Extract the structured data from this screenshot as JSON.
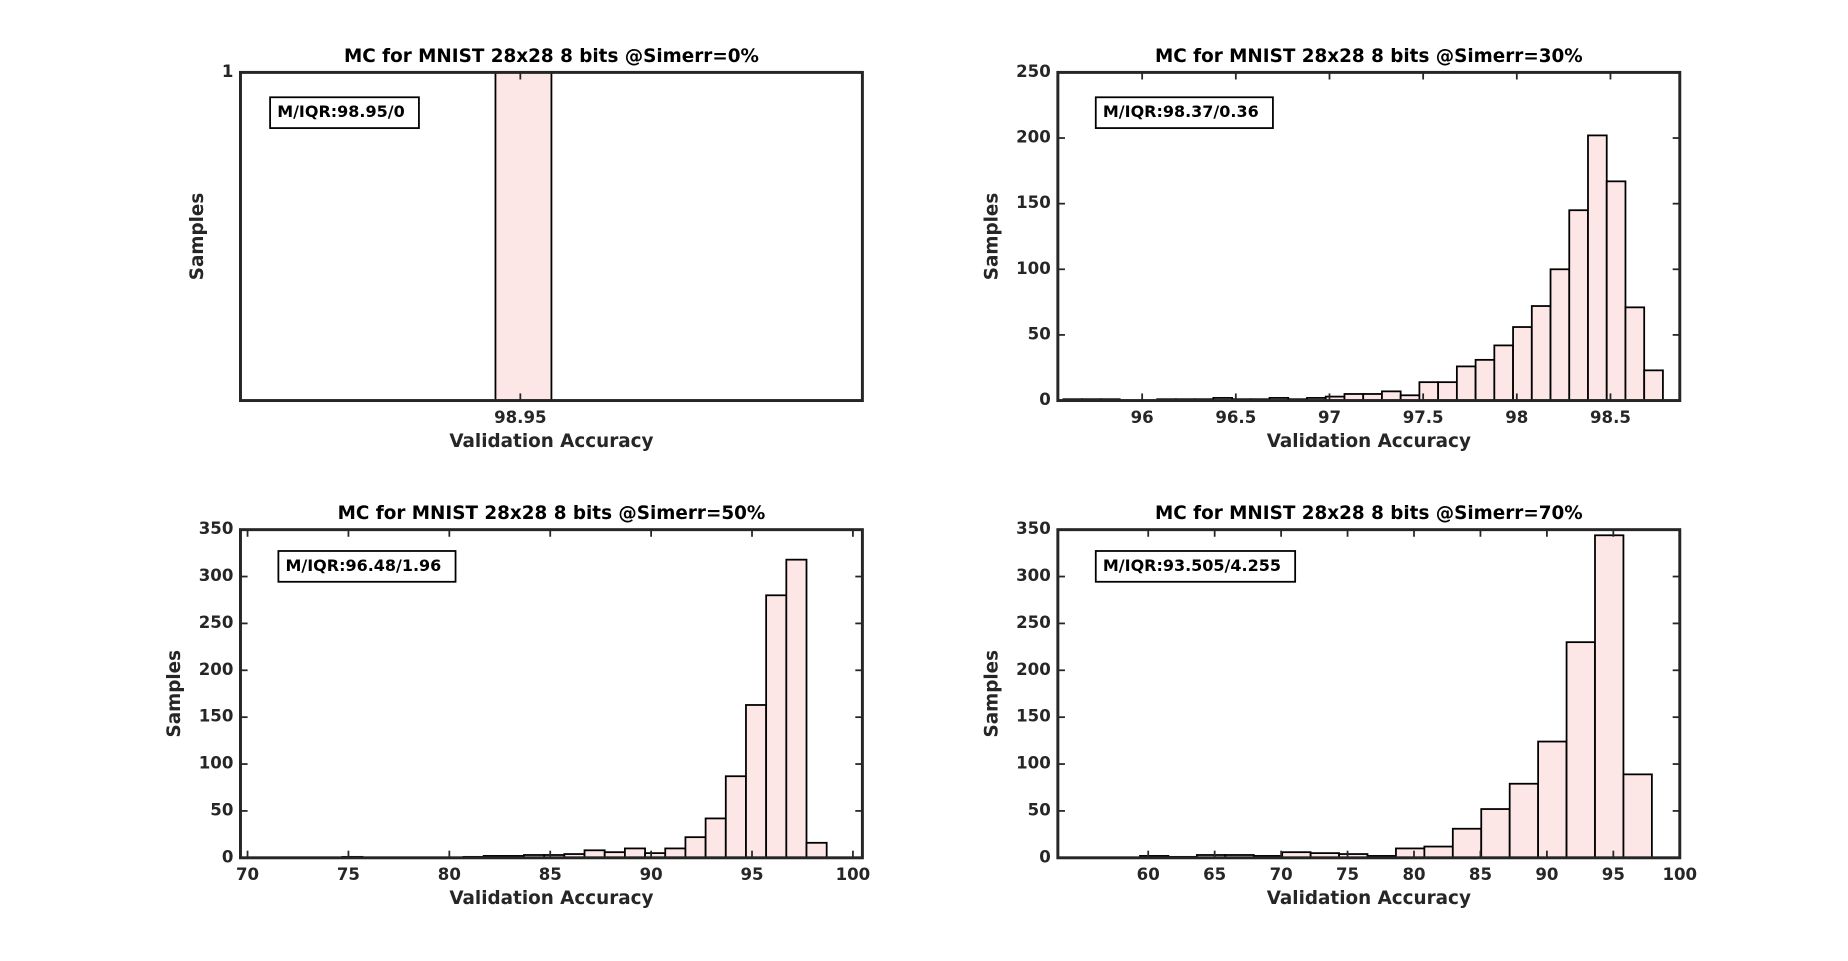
{
  "chart_data": [
    {
      "type": "histogram",
      "title": "MC for MNIST 28x28 8 bits @Simerr=0%",
      "xlabel": "Validation Accuracy",
      "ylabel": "Samples",
      "annotation": "M/IQR:98.95/0",
      "bins": [
        98.91,
        99.0
      ],
      "counts": [
        1
      ],
      "color": "#fde6e6",
      "xlim": [
        98.5,
        99.5
      ],
      "xticks": [
        98.95
      ],
      "ylim": [
        0,
        1
      ],
      "yticks": [
        1
      ]
    },
    {
      "type": "histogram",
      "title": "MC for MNIST 28x28 8 bits @Simerr=30%",
      "xlabel": "Validation Accuracy",
      "ylabel": "Samples",
      "annotation": "M/IQR:98.37/0.36",
      "bins": [
        95.58,
        95.68,
        95.78,
        95.88,
        95.98,
        96.08,
        96.18,
        96.28,
        96.38,
        96.48,
        96.58,
        96.68,
        96.78,
        96.88,
        96.98,
        97.08,
        97.18,
        97.28,
        97.38,
        97.48,
        97.58,
        97.68,
        97.78,
        97.88,
        97.98,
        98.08,
        98.18,
        98.28,
        98.38,
        98.48,
        98.58,
        98.68,
        98.78
      ],
      "counts": [
        1,
        1,
        1,
        0,
        0,
        1,
        1,
        1,
        2,
        1,
        1,
        2,
        1,
        2,
        3,
        5,
        5,
        7,
        4,
        14,
        14,
        26,
        31,
        42,
        56,
        72,
        100,
        145,
        202,
        167,
        71,
        23
      ],
      "color": "#fde6e6",
      "xlim": [
        95.55,
        98.87
      ],
      "xticks": [
        96,
        96.5,
        97,
        97.5,
        98,
        98.5
      ],
      "ylim": [
        0,
        250
      ],
      "yticks": [
        0,
        50,
        100,
        150,
        200,
        250
      ]
    },
    {
      "type": "histogram",
      "title": "MC for MNIST 28x28 8 bits @Simerr=50%",
      "xlabel": "Validation Accuracy",
      "ylabel": "Samples",
      "annotation": "M/IQR:96.48/1.96",
      "bins": [
        71.7,
        72.7,
        73.7,
        74.7,
        75.7,
        76.7,
        77.7,
        78.7,
        79.7,
        80.7,
        81.7,
        82.7,
        83.7,
        84.7,
        85.7,
        86.7,
        87.7,
        88.7,
        89.7,
        90.7,
        91.7,
        92.7,
        93.7,
        94.7,
        95.7,
        96.7,
        97.7,
        98.7
      ],
      "counts": [
        0,
        0,
        0,
        1,
        0,
        0,
        0,
        0,
        0,
        1,
        2,
        2,
        3,
        3,
        4,
        8,
        6,
        10,
        5,
        10,
        22,
        42,
        87,
        163,
        280,
        318,
        16
      ],
      "color": "#fde6e6",
      "xlim": [
        69.65,
        100.47
      ],
      "xticks": [
        70,
        75,
        80,
        85,
        90,
        95,
        100
      ],
      "ylim": [
        0,
        350
      ],
      "yticks": [
        0,
        50,
        100,
        150,
        200,
        250,
        300,
        350
      ]
    },
    {
      "type": "histogram",
      "title": "MC for MNIST 28x28 8 bits @Simerr=70%",
      "xlabel": "Validation Accuracy",
      "ylabel": "Samples",
      "annotation": "M/IQR:93.505/4.255",
      "bins": [
        57.24,
        59.38,
        61.52,
        63.66,
        65.8,
        67.94,
        70.08,
        72.22,
        74.36,
        76.5,
        78.64,
        80.78,
        82.92,
        85.06,
        87.2,
        89.34,
        91.48,
        93.62,
        95.76,
        97.9
      ],
      "counts": [
        0,
        2,
        1,
        3,
        3,
        2,
        6,
        5,
        4,
        2,
        10,
        12,
        31,
        52,
        79,
        124,
        230,
        344,
        89
      ],
      "color": "#fde6e6",
      "xlim": [
        53.2,
        100
      ],
      "xticks": [
        60,
        65,
        70,
        75,
        80,
        85,
        90,
        95,
        100
      ],
      "ylim": [
        0,
        350
      ],
      "yticks": [
        0,
        50,
        100,
        150,
        200,
        250,
        300,
        350
      ]
    }
  ]
}
